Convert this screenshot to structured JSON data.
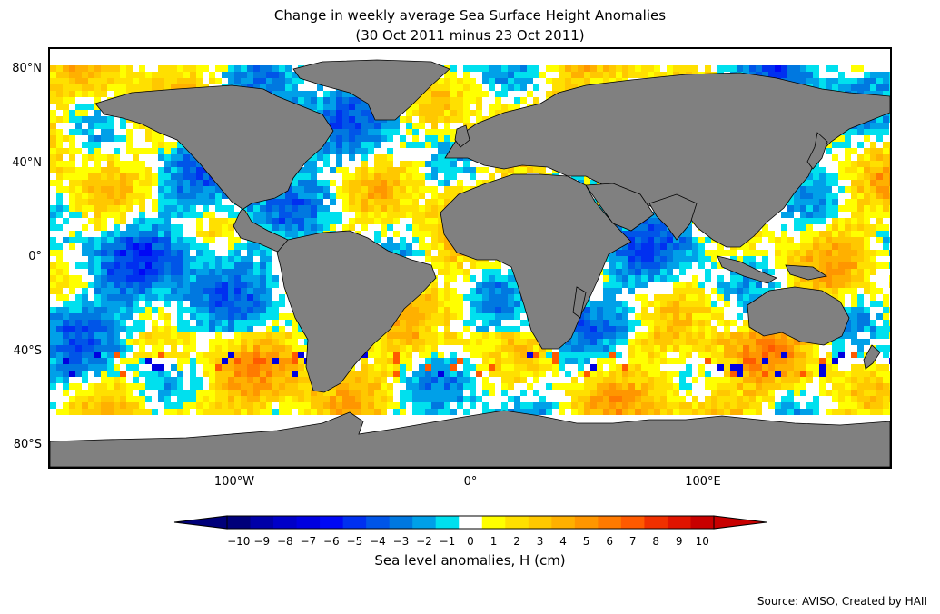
{
  "title": "Change in weekly average Sea Surface Height Anomalies",
  "subtitle": "(30 Oct 2011 minus 23 Oct 2011)",
  "lat_ticks": [
    "80°N",
    "40°N",
    "0°",
    "40°S",
    "80°S"
  ],
  "lon_ticks": [
    "100°W",
    "0°",
    "100°E"
  ],
  "colorbar": {
    "label": "Sea level anomalies, H (cm)",
    "ticks": [
      "−10",
      "−9",
      "−8",
      "−7",
      "−6",
      "−5",
      "−4",
      "−3",
      "−2",
      "−1",
      "0",
      "1",
      "2",
      "3",
      "4",
      "5",
      "6",
      "7",
      "8",
      "9",
      "10"
    ],
    "colors": [
      "#00007a",
      "#0000a8",
      "#0000c8",
      "#0000e0",
      "#0008f5",
      "#0030f0",
      "#0055e8",
      "#0078e0",
      "#00a0e8",
      "#00e0ee",
      "#ffffff",
      "#ffff00",
      "#ffe000",
      "#ffc800",
      "#ffb000",
      "#ff9600",
      "#ff7a00",
      "#ff5a00",
      "#f03000",
      "#e01400",
      "#c80000"
    ],
    "extend": "both"
  },
  "colors": {
    "land": "#808080",
    "coast": "#000000",
    "ocean_bg": "#ffffff"
  },
  "source": "Source: AVISO, Created by HAII"
}
